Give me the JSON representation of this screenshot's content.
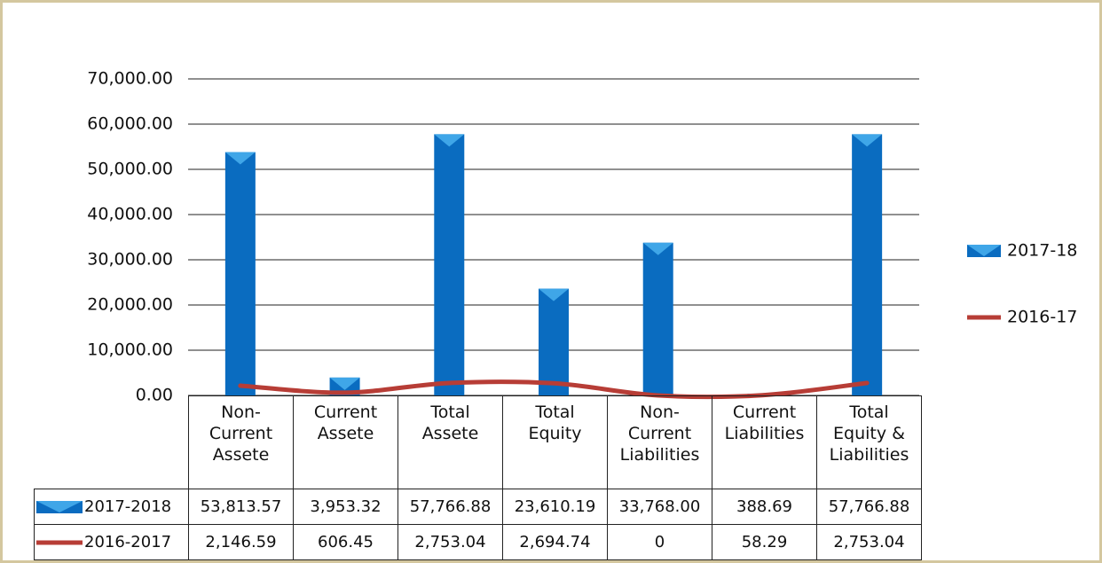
{
  "chart_data": {
    "type": "bar-line",
    "categories": [
      "Non-Current Assete",
      "Current Assete",
      "Total Assete",
      "Total Equity",
      "Non-Current Liabilities",
      "Current Liabilities",
      "Total Equity & Liabilities"
    ],
    "series": [
      {
        "name": "2017-18",
        "table_label": "2017-2018",
        "type": "bar",
        "color": "#0a6cc0",
        "values": [
          53813.57,
          3953.32,
          57766.88,
          23610.19,
          33768.0,
          388.69,
          57766.88
        ],
        "value_labels": [
          "53,813.57",
          "3,953.32",
          "57,766.88",
          "23,610.19",
          "33,768.00",
          "388.69",
          "57,766.88"
        ]
      },
      {
        "name": "2016-17",
        "table_label": "2016-2017",
        "type": "line",
        "color": "#b73d36",
        "values": [
          2146.59,
          606.45,
          2753.04,
          2694.74,
          0,
          58.29,
          2753.04
        ],
        "value_labels": [
          "2,146.59",
          "606.45",
          "2,753.04",
          "2,694.74",
          "0",
          "58.29",
          "2,753.04"
        ]
      }
    ],
    "ylim": [
      0,
      70000
    ],
    "yticks": [
      {
        "value": 0,
        "label": "0.00"
      },
      {
        "value": 10000,
        "label": "10,000.00"
      },
      {
        "value": 20000,
        "label": "20,000.00"
      },
      {
        "value": 30000,
        "label": "30,000.00"
      },
      {
        "value": 40000,
        "label": "40,000.00"
      },
      {
        "value": 50000,
        "label": "50,000.00"
      },
      {
        "value": 60000,
        "label": "60,000.00"
      },
      {
        "value": 70000,
        "label": "70,000.00"
      }
    ],
    "grid": true,
    "legend": "right"
  }
}
